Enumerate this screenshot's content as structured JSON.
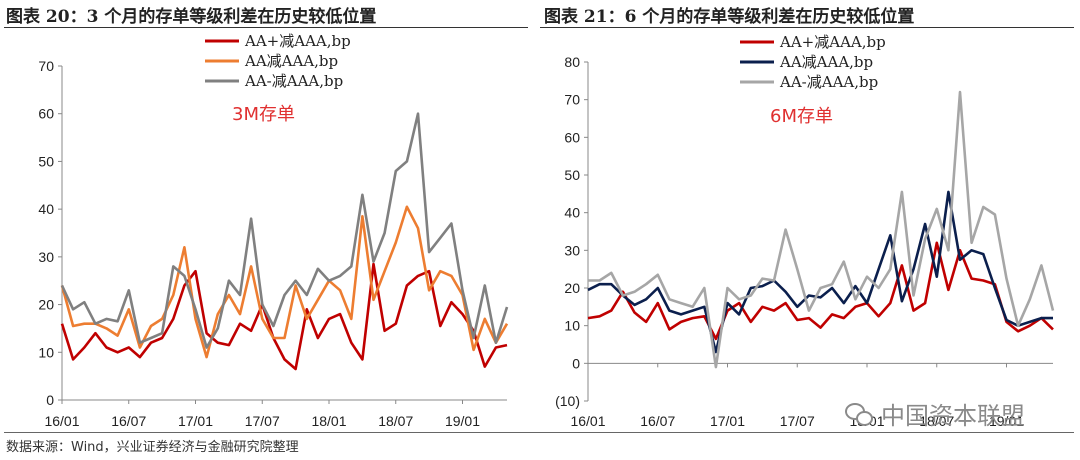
{
  "titles": {
    "left": "图表 20：3 个月的存单等级利差在历史较低位置",
    "right": "图表 21：6 个月的存单等级利差在历史较低位置"
  },
  "source": "数据来源：Wind，兴业证券经济与金融研究院整理",
  "watermark": "中国资本联盟",
  "colors": {
    "aa_plus": "#c00000",
    "aa": "#ed7d31",
    "aa_minus": "#808080",
    "aa_6m": "#0b1f4d",
    "aa_minus_6m": "#a6a6a6",
    "annotation": "#e03030"
  },
  "chart_data": [
    {
      "type": "line",
      "annotation": "3M存单",
      "ylim": [
        0,
        70
      ],
      "yticks": [
        0,
        10,
        20,
        30,
        40,
        50,
        60,
        70
      ],
      "ytick_labels": [
        "0",
        "10",
        "20",
        "30",
        "40",
        "50",
        "60",
        "70"
      ],
      "x_tick_labels": [
        "16/01",
        "16/07",
        "17/01",
        "17/07",
        "18/01",
        "18/07",
        "19/01"
      ],
      "x_tick_index": [
        0,
        6,
        12,
        18,
        24,
        30,
        36
      ],
      "n_points": 41,
      "legend_position": "top-right",
      "series": [
        {
          "name": "AA+减AAA,bp",
          "color_key": "aa_plus",
          "values": [
            16,
            8.5,
            11,
            14,
            11,
            10,
            11,
            9,
            12,
            13,
            17,
            24,
            27,
            14,
            12,
            11.5,
            16,
            14.5,
            20,
            13,
            8.5,
            6.5,
            19,
            13,
            17,
            18,
            12,
            8.5,
            28.5,
            14.5,
            16,
            24,
            26,
            27,
            15.5,
            20.5,
            18,
            14.5,
            7,
            11,
            11.5
          ]
        },
        {
          "name": "AA减AAA,bp",
          "color_key": "aa",
          "values": [
            24,
            15.5,
            16,
            16,
            15,
            13.5,
            19,
            11,
            15.5,
            17,
            22,
            32,
            17,
            9,
            18,
            22,
            18,
            28,
            17,
            13,
            13,
            24,
            17,
            21,
            25,
            23,
            17,
            38.5,
            21,
            27,
            33,
            40.5,
            36,
            23,
            27,
            26,
            22,
            10.5,
            17,
            12,
            16
          ]
        },
        {
          "name": "AA-减AAA,bp",
          "color_key": "aa_minus",
          "values": [
            24,
            19,
            20.5,
            16,
            17,
            16.5,
            23,
            12,
            13,
            14,
            28,
            26,
            19,
            11,
            15,
            25,
            22,
            38,
            20,
            15.5,
            22,
            25,
            22,
            27.5,
            25,
            26,
            28,
            43,
            29,
            35,
            48,
            50,
            60,
            31,
            34,
            37,
            23,
            13,
            24,
            12,
            19.5
          ]
        }
      ]
    },
    {
      "type": "line",
      "annotation": "6M存单",
      "ylim": [
        -10,
        80
      ],
      "yticks": [
        -10,
        0,
        10,
        20,
        30,
        40,
        50,
        60,
        70,
        80
      ],
      "ytick_labels": [
        "(10)",
        "0",
        "10",
        "20",
        "30",
        "40",
        "50",
        "60",
        "70",
        "80"
      ],
      "x_tick_labels": [
        "16/01",
        "16/07",
        "17/01",
        "17/07",
        "18/01",
        "18/07",
        "19/01"
      ],
      "x_tick_index": [
        0,
        6,
        12,
        18,
        24,
        30,
        36
      ],
      "n_points": 41,
      "legend_position": "top-left",
      "series": [
        {
          "name": "AA+减AAA,bp",
          "color_key": "aa_plus",
          "values": [
            12,
            12.5,
            14,
            19,
            13.5,
            11,
            16,
            9,
            11,
            12,
            12.5,
            6.5,
            14,
            16,
            11,
            15,
            14,
            16,
            11.5,
            12,
            9.5,
            13,
            12,
            15,
            16,
            12.5,
            16,
            26,
            14,
            16,
            32,
            19.5,
            30,
            22.5,
            22,
            21,
            11,
            8.5,
            10,
            12,
            9
          ]
        },
        {
          "name": "AA减AAA,bp",
          "color_key": "aa_6m",
          "values": [
            19.5,
            21,
            21,
            18,
            15.5,
            17,
            20,
            14,
            13,
            14,
            15,
            3,
            16,
            13,
            20,
            20.5,
            22,
            19,
            15,
            18,
            17.5,
            20,
            16,
            20.5,
            16,
            25,
            34,
            16.5,
            25,
            37,
            23,
            45.5,
            27.5,
            30,
            29,
            20,
            11.5,
            10,
            11,
            12,
            12
          ]
        },
        {
          "name": "AA-减AAA,bp",
          "color_key": "aa_minus_6m",
          "values": [
            22,
            22,
            24,
            18,
            19,
            21,
            23.5,
            17,
            16,
            15,
            20,
            -1,
            20,
            17,
            18,
            22.5,
            22,
            35.5,
            25,
            14,
            20,
            21,
            27,
            17,
            23,
            20,
            25,
            45.5,
            18,
            33,
            41,
            30,
            72,
            32,
            41.5,
            39.5,
            22.5,
            10,
            17,
            26,
            14
          ]
        }
      ]
    }
  ]
}
